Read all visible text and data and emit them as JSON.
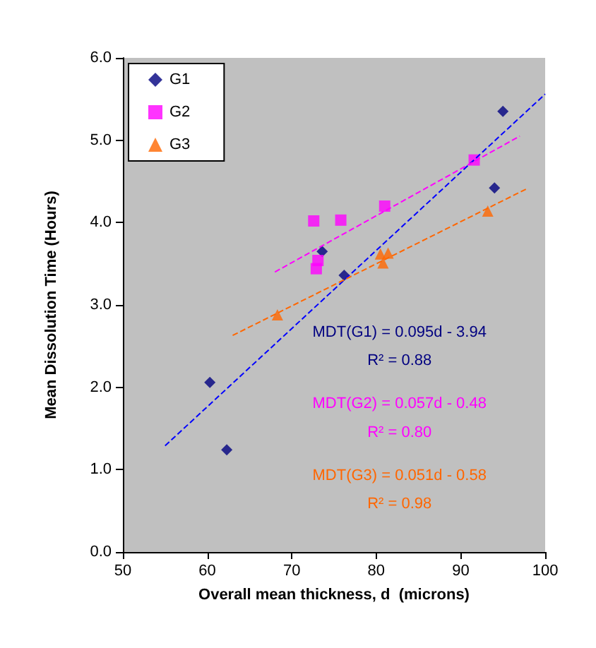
{
  "chart_data": {
    "type": "scatter",
    "xlabel": "Overall mean thickness, d  (microns)",
    "ylabel": "Mean Dissolution Time (Hours)",
    "xlim": [
      50,
      100
    ],
    "xticks": [
      50,
      60,
      70,
      80,
      90,
      100
    ],
    "ylim": [
      0,
      6
    ],
    "yticks": [
      {
        "value": 0,
        "label": "0.0"
      },
      {
        "value": 1,
        "label": "1.0"
      },
      {
        "value": 2,
        "label": "2.0"
      },
      {
        "value": 3,
        "label": "3.0"
      },
      {
        "value": 4,
        "label": "4.0"
      },
      {
        "value": 5,
        "label": "5.0"
      },
      {
        "value": 6,
        "label": "6.0"
      }
    ],
    "grid": false,
    "legend": "top left",
    "series": [
      {
        "name": "G1",
        "color": "#000080",
        "marker": "diamond",
        "x": [
          60.3,
          62.3,
          73.6,
          76.2,
          94,
          95
        ],
        "values": [
          2.06,
          1.24,
          3.65,
          3.36,
          4.42,
          5.35
        ]
      },
      {
        "name": "G2",
        "color": "#ff00ff",
        "marker": "square",
        "x": [
          72.6,
          72.9,
          73.1,
          75.8,
          81,
          91.6
        ],
        "values": [
          4.02,
          3.44,
          3.54,
          4.03,
          4.2,
          4.76
        ]
      },
      {
        "name": "G3",
        "color": "#ff6600",
        "marker": "triangle",
        "x": [
          68.3,
          80.5,
          80.8,
          81.4,
          93.2
        ],
        "values": [
          2.88,
          3.62,
          3.51,
          3.63,
          4.14
        ]
      },
      {
        "type": "line",
        "color": "#0000ff",
        "line_style": "dashed",
        "marker": "none",
        "x": [
          55,
          100
        ],
        "values": [
          1.29,
          5.56
        ]
      },
      {
        "type": "line",
        "color": "#ff00ff",
        "line_style": "dashed",
        "marker": "none",
        "x": [
          68,
          97
        ],
        "values": [
          3.4,
          5.05
        ]
      },
      {
        "type": "line",
        "color": "#ff6600",
        "line_style": "dashed",
        "marker": "none",
        "x": [
          63,
          98
        ],
        "values": [
          2.63,
          4.42
        ]
      }
    ],
    "annotations": [
      "MDT(G1) = 0.095d - 3.94",
      "R² = 0.88",
      "MDT(G2) = 0.057d - 0.48",
      "R² = 0.80",
      "MDT(G3) = 0.051d - 0.58",
      "R² = 0.98"
    ]
  }
}
